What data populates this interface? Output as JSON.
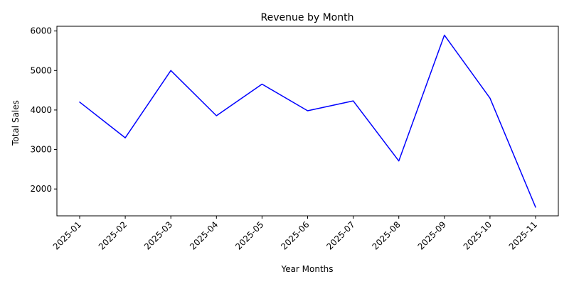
{
  "chart_data": {
    "type": "line",
    "title": "Revenue by Month",
    "xlabel": "Year Months",
    "ylabel": "Total Sales",
    "categories": [
      "2025-01",
      "2025-02",
      "2025-03",
      "2025-04",
      "2025-05",
      "2025-06",
      "2025-07",
      "2025-08",
      "2025-09",
      "2025-10",
      "2025-11"
    ],
    "series": [
      {
        "values": [
          4200,
          3295,
          5000,
          3855,
          4655,
          3980,
          4230,
          2710,
          5895,
          4300,
          1540
        ],
        "color": "#0000ff"
      }
    ],
    "yticks": [
      2000,
      3000,
      4000,
      5000,
      6000
    ],
    "ylim": [
      1320,
      6120
    ],
    "grid": false,
    "legend": "none"
  }
}
